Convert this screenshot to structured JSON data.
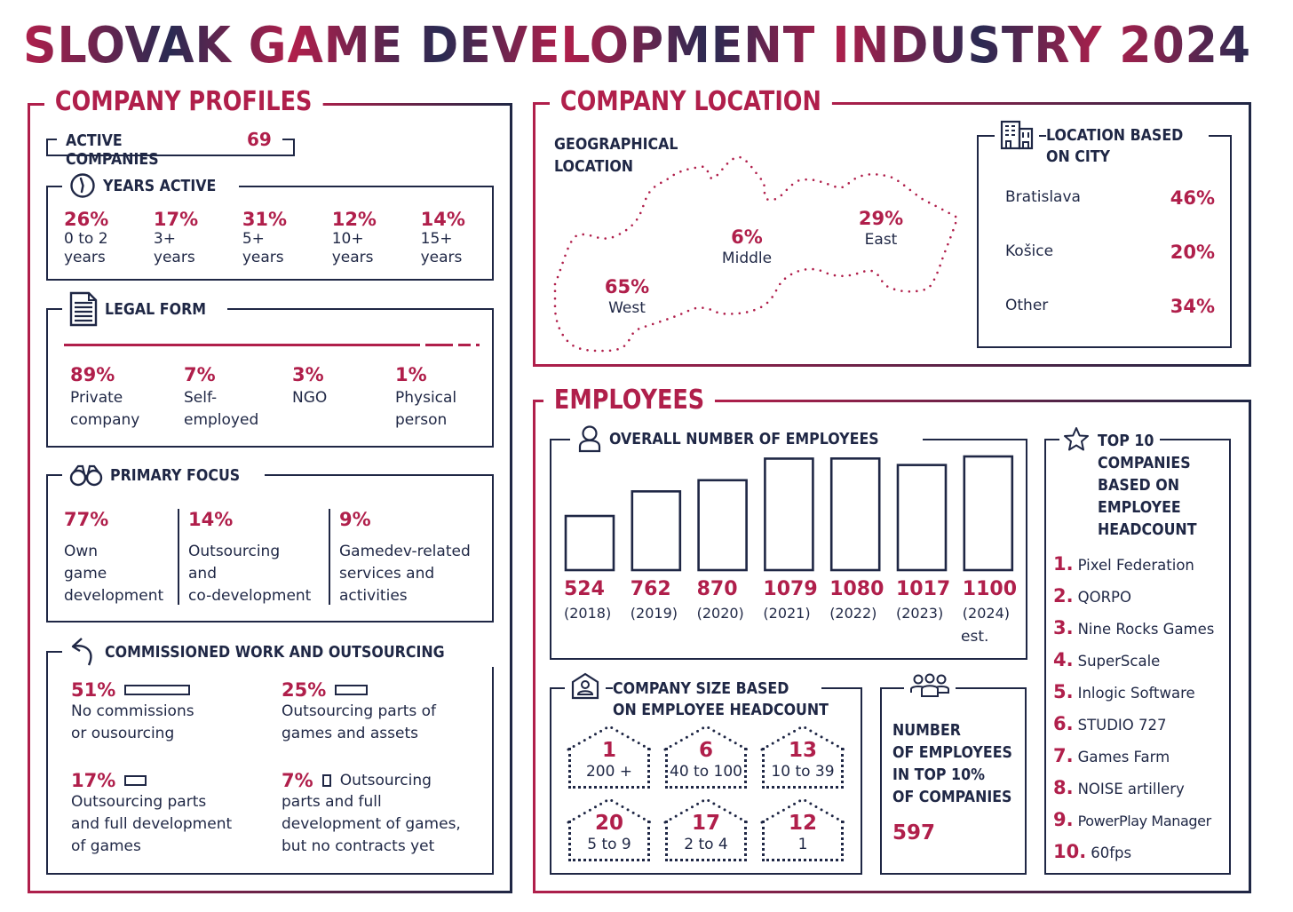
{
  "title": "SLOVAK GAME DEVELOPMENT INDUSTRY 2024",
  "colors": {
    "accent": "#b01f4b",
    "navy": "#1f2745",
    "background": "#ffffff"
  },
  "company_profiles": {
    "heading": "COMPANY PROFILES",
    "active_companies": {
      "label": "ACTIVE COMPANIES",
      "value": "69"
    },
    "years_active": {
      "heading": "YEARS ACTIVE",
      "icon": "clock-icon",
      "items": [
        {
          "value": "26%",
          "label1": "0 to 2",
          "label2": "years"
        },
        {
          "value": "17%",
          "label1": "3+",
          "label2": "years"
        },
        {
          "value": "31%",
          "label1": "5+",
          "label2": "years"
        },
        {
          "value": "12%",
          "label1": "10+",
          "label2": "years"
        },
        {
          "value": "14%",
          "label1": "15+",
          "label2": "years"
        }
      ]
    },
    "legal_form": {
      "heading": "LEGAL FORM",
      "icon": "document-icon",
      "items": [
        {
          "value": "89%",
          "share": 89,
          "label1": "Private",
          "label2": "company"
        },
        {
          "value": "7%",
          "share": 7,
          "label1": "Self-",
          "label2": "employed"
        },
        {
          "value": "3%",
          "share": 3,
          "label1": "NGO",
          "label2": ""
        },
        {
          "value": "1%",
          "share": 1,
          "label1": "Physical",
          "label2": "person"
        }
      ]
    },
    "primary_focus": {
      "heading": "PRIMARY FOCUS",
      "icon": "binoculars-icon",
      "items": [
        {
          "value": "77%",
          "lines": [
            "Own",
            "game",
            "development"
          ]
        },
        {
          "value": "14%",
          "lines": [
            "Outsourcing",
            "and",
            "co-development"
          ]
        },
        {
          "value": "9%",
          "lines": [
            "Gamedev-related",
            "services and",
            "activities"
          ]
        }
      ]
    },
    "commissioned": {
      "heading": "COMMISSIONED WORK AND OUTSOURCING",
      "icon": "arrow-back-icon",
      "items": [
        {
          "value": "51%",
          "share": 51,
          "lines": [
            "No commissions",
            "or ousourcing"
          ]
        },
        {
          "value": "25%",
          "share": 25,
          "lines": [
            "Outsourcing parts of",
            "games and assets"
          ]
        },
        {
          "value": "17%",
          "share": 17,
          "lines": [
            "Outsourcing parts",
            "and full development",
            "of games"
          ]
        },
        {
          "value": "7%",
          "share": 7,
          "inline": "Outsourcing",
          "lines": [
            "parts and full",
            "development of games,",
            "but no contracts yet"
          ]
        }
      ]
    }
  },
  "company_location": {
    "heading": "COMPANY LOCATION",
    "geo": {
      "heading1": "GEOGRAPHICAL",
      "heading2": "LOCATION",
      "regions": [
        {
          "value": "65%",
          "label": "West"
        },
        {
          "value": "6%",
          "label": "Middle"
        },
        {
          "value": "29%",
          "label": "East"
        }
      ]
    },
    "city": {
      "heading1": "LOCATION BASED",
      "heading2": "ON CITY",
      "icon": "building-icon",
      "items": [
        {
          "city": "Bratislava",
          "value": "46%"
        },
        {
          "city": "Košice",
          "value": "20%"
        },
        {
          "city": "Other",
          "value": "34%"
        }
      ]
    }
  },
  "employees": {
    "heading": "EMPLOYEES",
    "overall": {
      "heading": "OVERALL NUMBER OF EMPLOYEES",
      "icon": "person-icon",
      "note": "est."
    },
    "company_size": {
      "heading1": "COMPANY SIZE BASED",
      "heading2": "ON EMPLOYEE HEADCOUNT",
      "icon": "house-person-icon",
      "items": [
        {
          "count": "1",
          "range": "200 +"
        },
        {
          "count": "6",
          "range": "40 to 100"
        },
        {
          "count": "13",
          "range": "10 to 39"
        },
        {
          "count": "20",
          "range": "5 to 9"
        },
        {
          "count": "17",
          "range": "2 to 4"
        },
        {
          "count": "12",
          "range": "1"
        }
      ]
    },
    "top10pct": {
      "icon": "group-icon",
      "lines": [
        "NUMBER",
        "OF EMPLOYEES",
        "IN TOP 10%",
        "OF COMPANIES"
      ],
      "value": "597"
    },
    "top10": {
      "icon": "star-icon",
      "heading_lines": [
        "TOP 10",
        "COMPANIES",
        "BASED ON",
        "EMPLOYEE",
        "HEADCOUNT"
      ],
      "items": [
        {
          "rank": "1.",
          "name": "Pixel Federation"
        },
        {
          "rank": "2.",
          "name": "QORPO"
        },
        {
          "rank": "3.",
          "name": "Nine Rocks Games"
        },
        {
          "rank": "4.",
          "name": "SuperScale"
        },
        {
          "rank": "5.",
          "name": "Inlogic Software"
        },
        {
          "rank": "6.",
          "name": "STUDIO 727"
        },
        {
          "rank": "7.",
          "name": "Games Farm"
        },
        {
          "rank": "8.",
          "name": "NOISE artillery"
        },
        {
          "rank": "9.",
          "name": "PowerPlay Manager"
        },
        {
          "rank": "10.",
          "name": "60fps"
        }
      ]
    }
  },
  "chart_data": {
    "type": "bar",
    "title": "OVERALL NUMBER OF EMPLOYEES",
    "categories": [
      "(2018)",
      "(2019)",
      "(2020)",
      "(2021)",
      "(2022)",
      "(2023)",
      "(2024)"
    ],
    "values": [
      524,
      762,
      870,
      1079,
      1080,
      1017,
      1100
    ],
    "value_labels": [
      "524",
      "762",
      "870",
      "1079",
      "1080",
      "1017",
      "1100"
    ],
    "annotations": [
      "est. (2024)"
    ],
    "xlabel": "",
    "ylabel": "",
    "ylim": [
      0,
      1100
    ],
    "grid": false,
    "legend": "none"
  }
}
